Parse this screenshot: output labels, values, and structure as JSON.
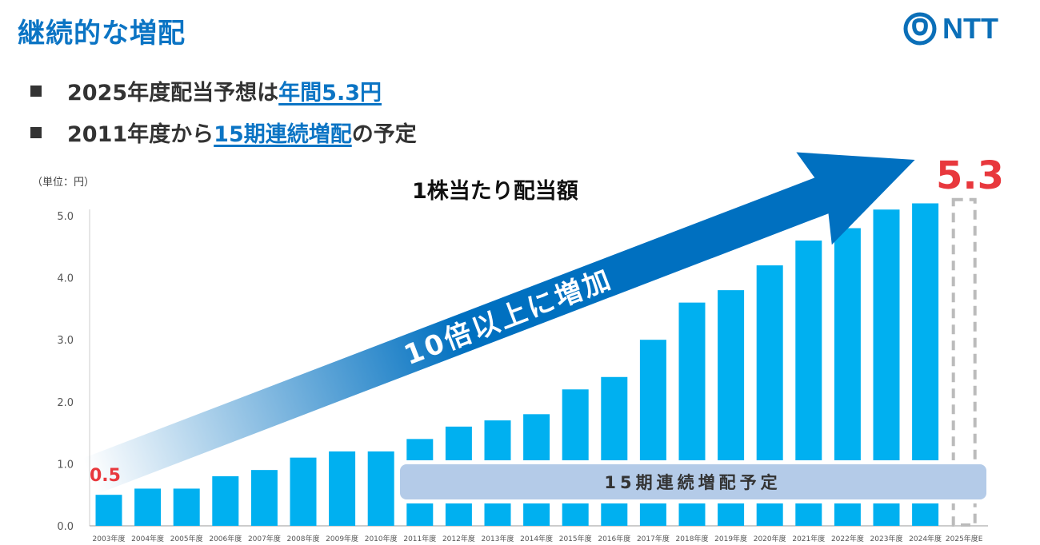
{
  "title": "継続的な増配",
  "logo": {
    "text": "NTT",
    "color": "#0b6fb8"
  },
  "bullets": [
    {
      "prefix": "2025年度配当予想は",
      "highlight": "年間5.3円",
      "suffix": ""
    },
    {
      "prefix": "2011年度から",
      "highlight": "15期連続増配",
      "suffix": "の予定"
    }
  ],
  "colors": {
    "bar": "#00b0f0",
    "arrow": "#0070c0",
    "highlight_text": "#0b74c4",
    "callout": "#e8383d",
    "banner": "#b4cbe8"
  },
  "chart_data": {
    "type": "bar",
    "title": "1株当たり配当額",
    "unit_label": "（単位：円）",
    "categories": [
      "2003年度",
      "2004年度",
      "2005年度",
      "2006年度",
      "2007年度",
      "2008年度",
      "2009年度",
      "2010年度",
      "2011年度",
      "2012年度",
      "2013年度",
      "2014年度",
      "2015年度",
      "2016年度",
      "2017年度",
      "2018年度",
      "2019年度",
      "2020年度",
      "2021年度",
      "2022年度",
      "2023年度",
      "2024年度",
      "2025年度E"
    ],
    "values": [
      0.5,
      0.6,
      0.6,
      0.8,
      0.9,
      1.1,
      1.2,
      1.2,
      1.4,
      1.6,
      1.7,
      1.8,
      2.2,
      2.4,
      3.0,
      3.6,
      3.8,
      4.2,
      4.6,
      4.8,
      5.1,
      5.2,
      5.3
    ],
    "forecast_index": 22,
    "ylim": [
      0,
      5.0
    ],
    "yticks": [
      "0.0",
      "1.0",
      "2.0",
      "3.0",
      "4.0",
      "5.0"
    ],
    "annotations": {
      "start_value": "0.5",
      "end_value": "5.3",
      "arrow_text": "10倍以上に増加",
      "banner_text": "15期連続増配予定"
    }
  }
}
